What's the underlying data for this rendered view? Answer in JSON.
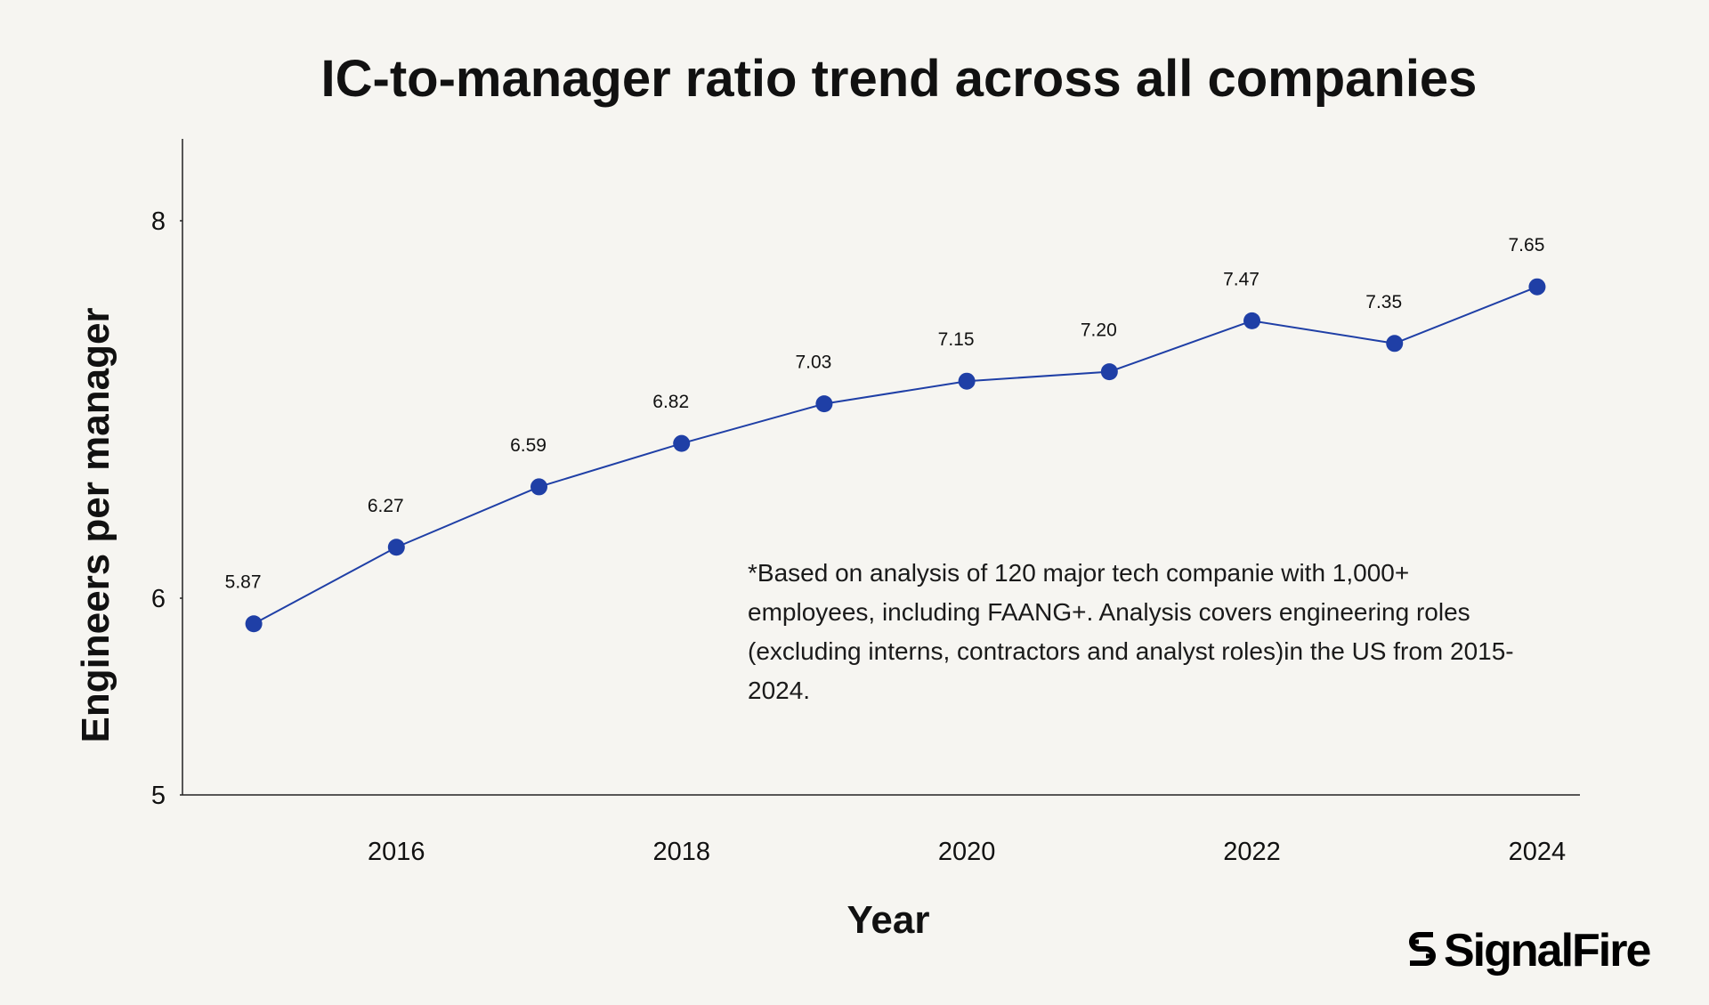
{
  "chart_data": {
    "type": "line",
    "title": "IC-to-manager ratio trend across all companies",
    "xlabel": "Year",
    "ylabel": "Engineers per manager",
    "x": [
      2015,
      2016,
      2017,
      2018,
      2019,
      2020,
      2021,
      2022,
      2023,
      2024
    ],
    "series": [
      {
        "values": [
          5.87,
          6.27,
          6.59,
          6.82,
          7.03,
          7.15,
          7.2,
          7.47,
          7.35,
          7.65
        ],
        "data_labels": [
          "5.87",
          "6.27",
          "6.59",
          "6.82",
          "7.03",
          "7.15",
          "7.20",
          "7.47",
          "7.35",
          "7.65"
        ],
        "color": "#1f3fa6"
      }
    ],
    "xticks": [
      "2016",
      "2018",
      "2020",
      "2022",
      "2024"
    ],
    "yticks": [
      "5",
      "6",
      "8"
    ],
    "xlim": [
      2014.5,
      2024.3
    ],
    "grid": false,
    "legend": "none",
    "annotation": "*Based on analysis of 120 major tech companie with 1,000+ employees, including FAANG+. Analysis covers engineering roles (excluding interns, contractors and analyst roles)in the US from 2015-2024."
  },
  "logo": {
    "text": "SignalFire"
  },
  "colors": {
    "background": "#f6f5f1",
    "line": "#1f3fa6",
    "text": "#111111"
  }
}
